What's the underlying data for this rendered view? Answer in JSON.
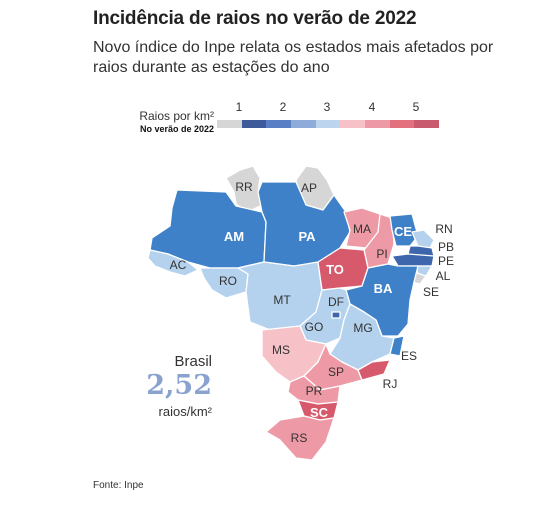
{
  "title": "Incidência de raios no verão de 2022",
  "subtitle": "Novo índice do Inpe relata os estados mais afetados por raios durante as estações do ano",
  "legend": {
    "label": "Raios por km²",
    "sublabel": "No verão de 2022",
    "ticks": [
      "1",
      "2",
      "3",
      "4",
      "5"
    ],
    "colors": [
      "#d6d6d6",
      "#3f5a9b",
      "#5a7fc4",
      "#8fabd9",
      "#bcd4ee",
      "#f6c2c8",
      "#ee9aa6",
      "#e2707f",
      "#c85b6d"
    ]
  },
  "colors": {
    "gray": "#d6d6d6",
    "dark_blue": "#3e66ad",
    "blue": "#3f81c8",
    "light_blue": "#b4d2ee",
    "pale_pink": "#f6c2c8",
    "pink": "#ee9aa6",
    "red": "#d65a6c",
    "title": "#222222",
    "highlight": "#8aa2cf"
  },
  "states": [
    {
      "abbr": "RR",
      "color": "gray"
    },
    {
      "abbr": "AP",
      "color": "gray"
    },
    {
      "abbr": "AM",
      "color": "blue"
    },
    {
      "abbr": "PA",
      "color": "blue"
    },
    {
      "abbr": "AC",
      "color": "light_blue"
    },
    {
      "abbr": "RO",
      "color": "light_blue"
    },
    {
      "abbr": "MT",
      "color": "light_blue"
    },
    {
      "abbr": "MA",
      "color": "pink"
    },
    {
      "abbr": "PI",
      "color": "pink"
    },
    {
      "abbr": "TO",
      "color": "red"
    },
    {
      "abbr": "CE",
      "color": "blue"
    },
    {
      "abbr": "RN",
      "color": "light_blue"
    },
    {
      "abbr": "PB",
      "color": "dark_blue"
    },
    {
      "abbr": "PE",
      "color": "dark_blue"
    },
    {
      "abbr": "AL",
      "color": "light_blue"
    },
    {
      "abbr": "SE",
      "color": "gray"
    },
    {
      "abbr": "BA",
      "color": "blue"
    },
    {
      "abbr": "DF",
      "color": "dark_blue"
    },
    {
      "abbr": "GO",
      "color": "light_blue"
    },
    {
      "abbr": "MG",
      "color": "light_blue"
    },
    {
      "abbr": "ES",
      "color": "blue"
    },
    {
      "abbr": "MS",
      "color": "pale_pink"
    },
    {
      "abbr": "SP",
      "color": "pink"
    },
    {
      "abbr": "RJ",
      "color": "red"
    },
    {
      "abbr": "PR",
      "color": "pink"
    },
    {
      "abbr": "SC",
      "color": "red"
    },
    {
      "abbr": "RS",
      "color": "pink"
    }
  ],
  "summary": {
    "label": "Brasil",
    "value": "2,52",
    "unit": "raios/km²"
  },
  "source": "Fonte: Inpe"
}
